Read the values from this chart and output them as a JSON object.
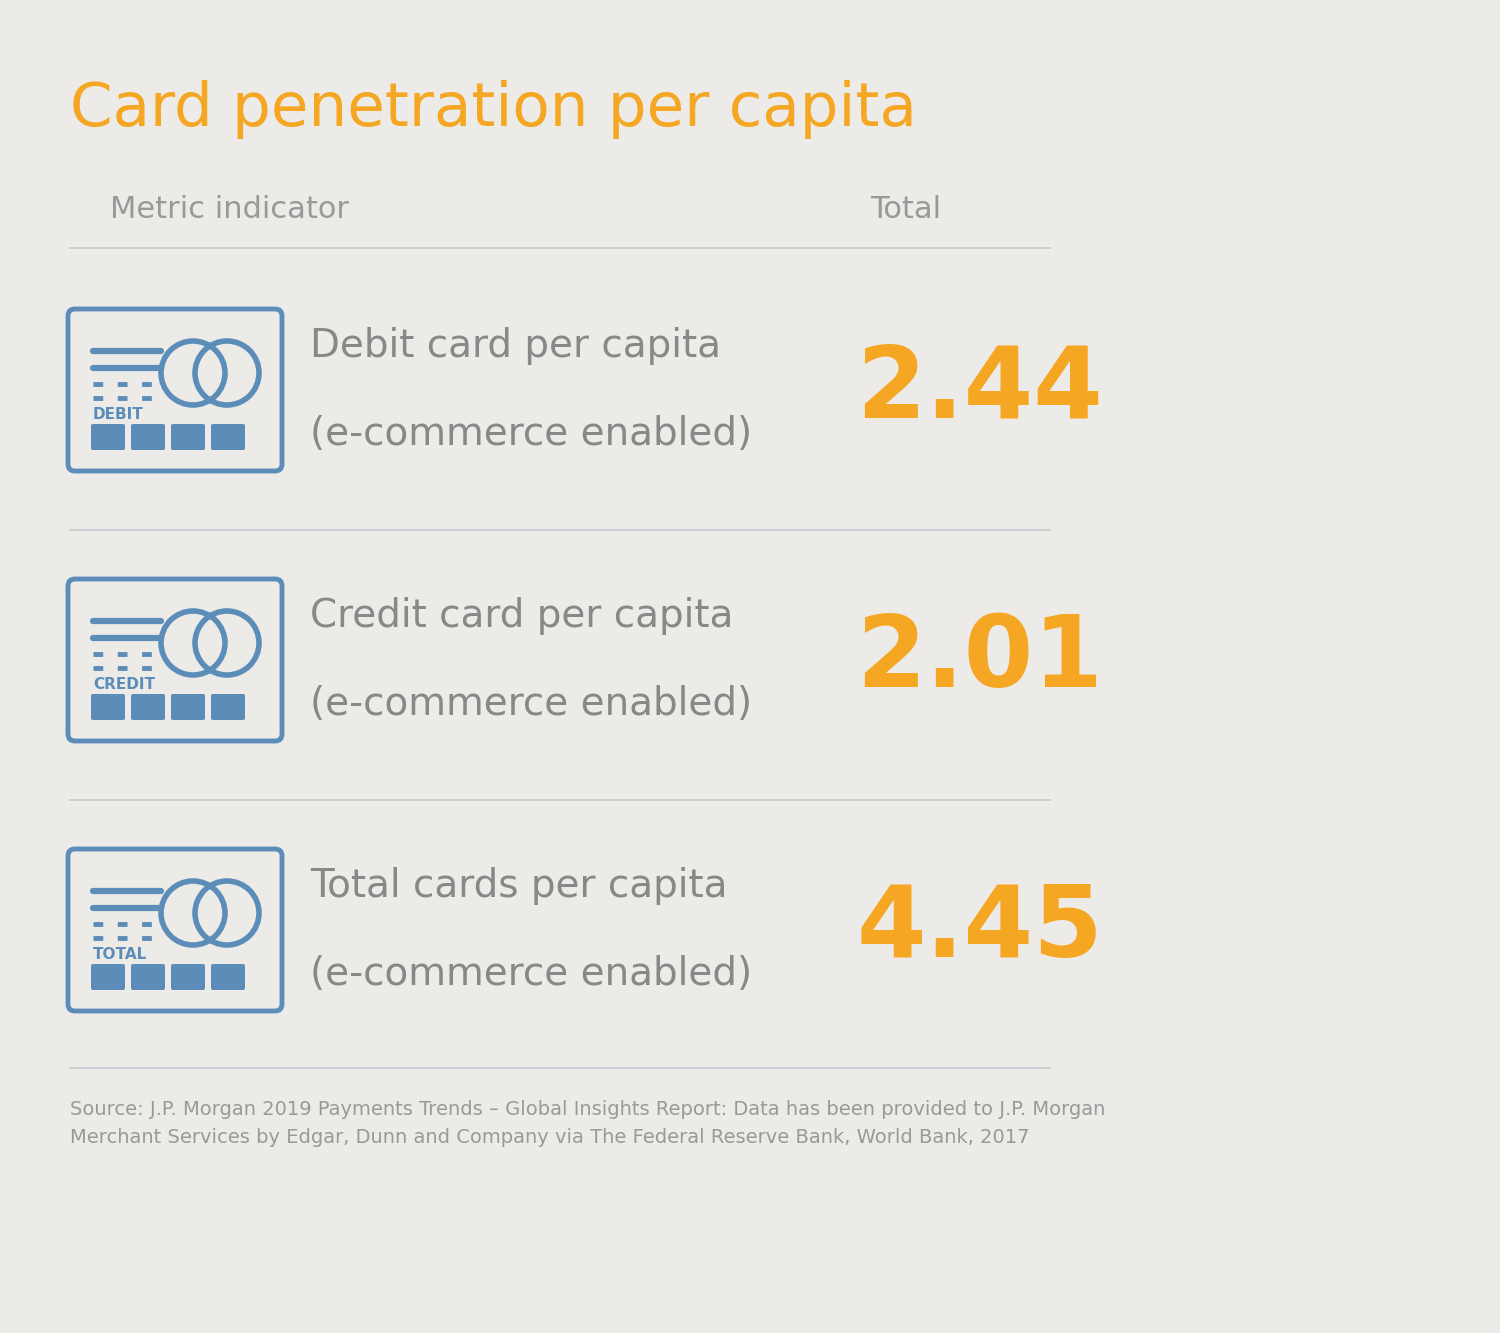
{
  "title": "Card penetration per capita",
  "title_color": "#F5A623",
  "background_color": "#EDEBE8",
  "col_header_metric": "Metric indicator",
  "col_header_total": "Total",
  "col_header_color": "#999999",
  "rows": [
    {
      "label_line1": "Debit card per capita",
      "label_line2": "(e-commerce enabled)",
      "card_type": "DEBIT",
      "value": "2.44"
    },
    {
      "label_line1": "Credit card per capita",
      "label_line2": "(e-commerce enabled)",
      "card_type": "CREDIT",
      "value": "2.01"
    },
    {
      "label_line1": "Total cards per capita",
      "label_line2": "(e-commerce enabled)",
      "card_type": "TOTAL",
      "value": "4.45"
    }
  ],
  "value_color": "#F5A623",
  "label_color": "#888888",
  "card_border_color": "#5B8DB8",
  "card_fill_color": "#EDEBE8",
  "card_icon_color": "#5B8DB8",
  "divider_color": "#C8C8D0",
  "source_text": "Source: J.P. Morgan 2019 Payments Trends – Global Insights Report: Data has been provided to J.P. Morgan\nMerchant Services by Edgar, Dunn and Company via The Federal Reserve Bank, World Bank, 2017",
  "source_color": "#999999",
  "fig_width": 15.0,
  "fig_height": 13.33,
  "dpi": 100
}
